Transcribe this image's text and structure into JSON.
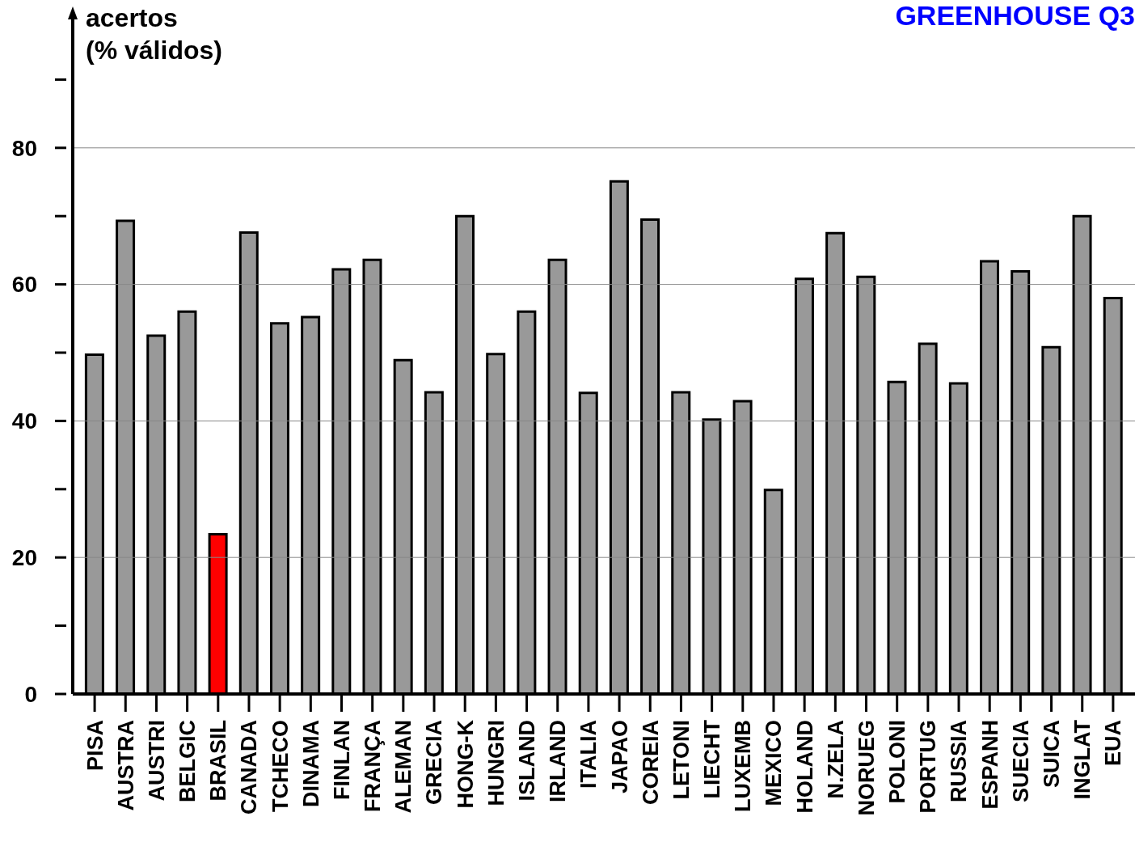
{
  "chart_data": {
    "type": "bar",
    "title": "GREENHOUSE Q3",
    "ylabel": "acertos\n(% válidos)",
    "categories": [
      "PISA",
      "AUSTRA",
      "AUSTRI",
      "BELGIC",
      "BRASIL",
      "CANADA",
      "TCHECO",
      "DINAMA",
      "FINLAN",
      "FRANÇA",
      "ALEMAN",
      "GRECIA",
      "HONG-K",
      "HUNGRI",
      "ISLAND",
      "IRLAND",
      "ITALIA",
      "JAPAO",
      "COREIA",
      "LETONI",
      "LIECHT",
      "LUXEMB",
      "MEXICO",
      "HOLAND",
      "N.ZELA",
      "NORUEG",
      "POLONI",
      "PORTUG",
      "RUSSIA",
      "ESPANH",
      "SUECIA",
      "SUICA",
      "INGLAT",
      "EUA"
    ],
    "values": [
      49.7,
      69.3,
      52.5,
      56.0,
      23.4,
      67.6,
      54.3,
      55.2,
      62.2,
      63.6,
      48.9,
      44.2,
      70.0,
      49.8,
      56.0,
      63.6,
      44.1,
      75.1,
      69.5,
      44.2,
      40.2,
      42.9,
      29.9,
      60.8,
      67.5,
      61.1,
      45.7,
      51.3,
      45.5,
      63.4,
      61.9,
      50.8,
      70.0,
      58.0
    ],
    "colors": [
      "#999999",
      "#999999",
      "#999999",
      "#999999",
      "#ff0000",
      "#999999",
      "#999999",
      "#999999",
      "#999999",
      "#999999",
      "#999999",
      "#999999",
      "#999999",
      "#999999",
      "#999999",
      "#999999",
      "#999999",
      "#999999",
      "#999999",
      "#999999",
      "#999999",
      "#999999",
      "#999999",
      "#999999",
      "#999999",
      "#999999",
      "#999999",
      "#999999",
      "#999999",
      "#999999",
      "#999999",
      "#999999",
      "#999999",
      "#999999"
    ],
    "ylim": [
      0,
      100
    ],
    "yticks": [
      0,
      {
        "value": 10,
        "label": null
      },
      20,
      {
        "value": 30,
        "label": null
      },
      40,
      {
        "value": 50,
        "label": null
      },
      60,
      {
        "value": 70,
        "label": null
      },
      80,
      {
        "value": 90,
        "label": null
      }
    ],
    "grid": "y"
  }
}
